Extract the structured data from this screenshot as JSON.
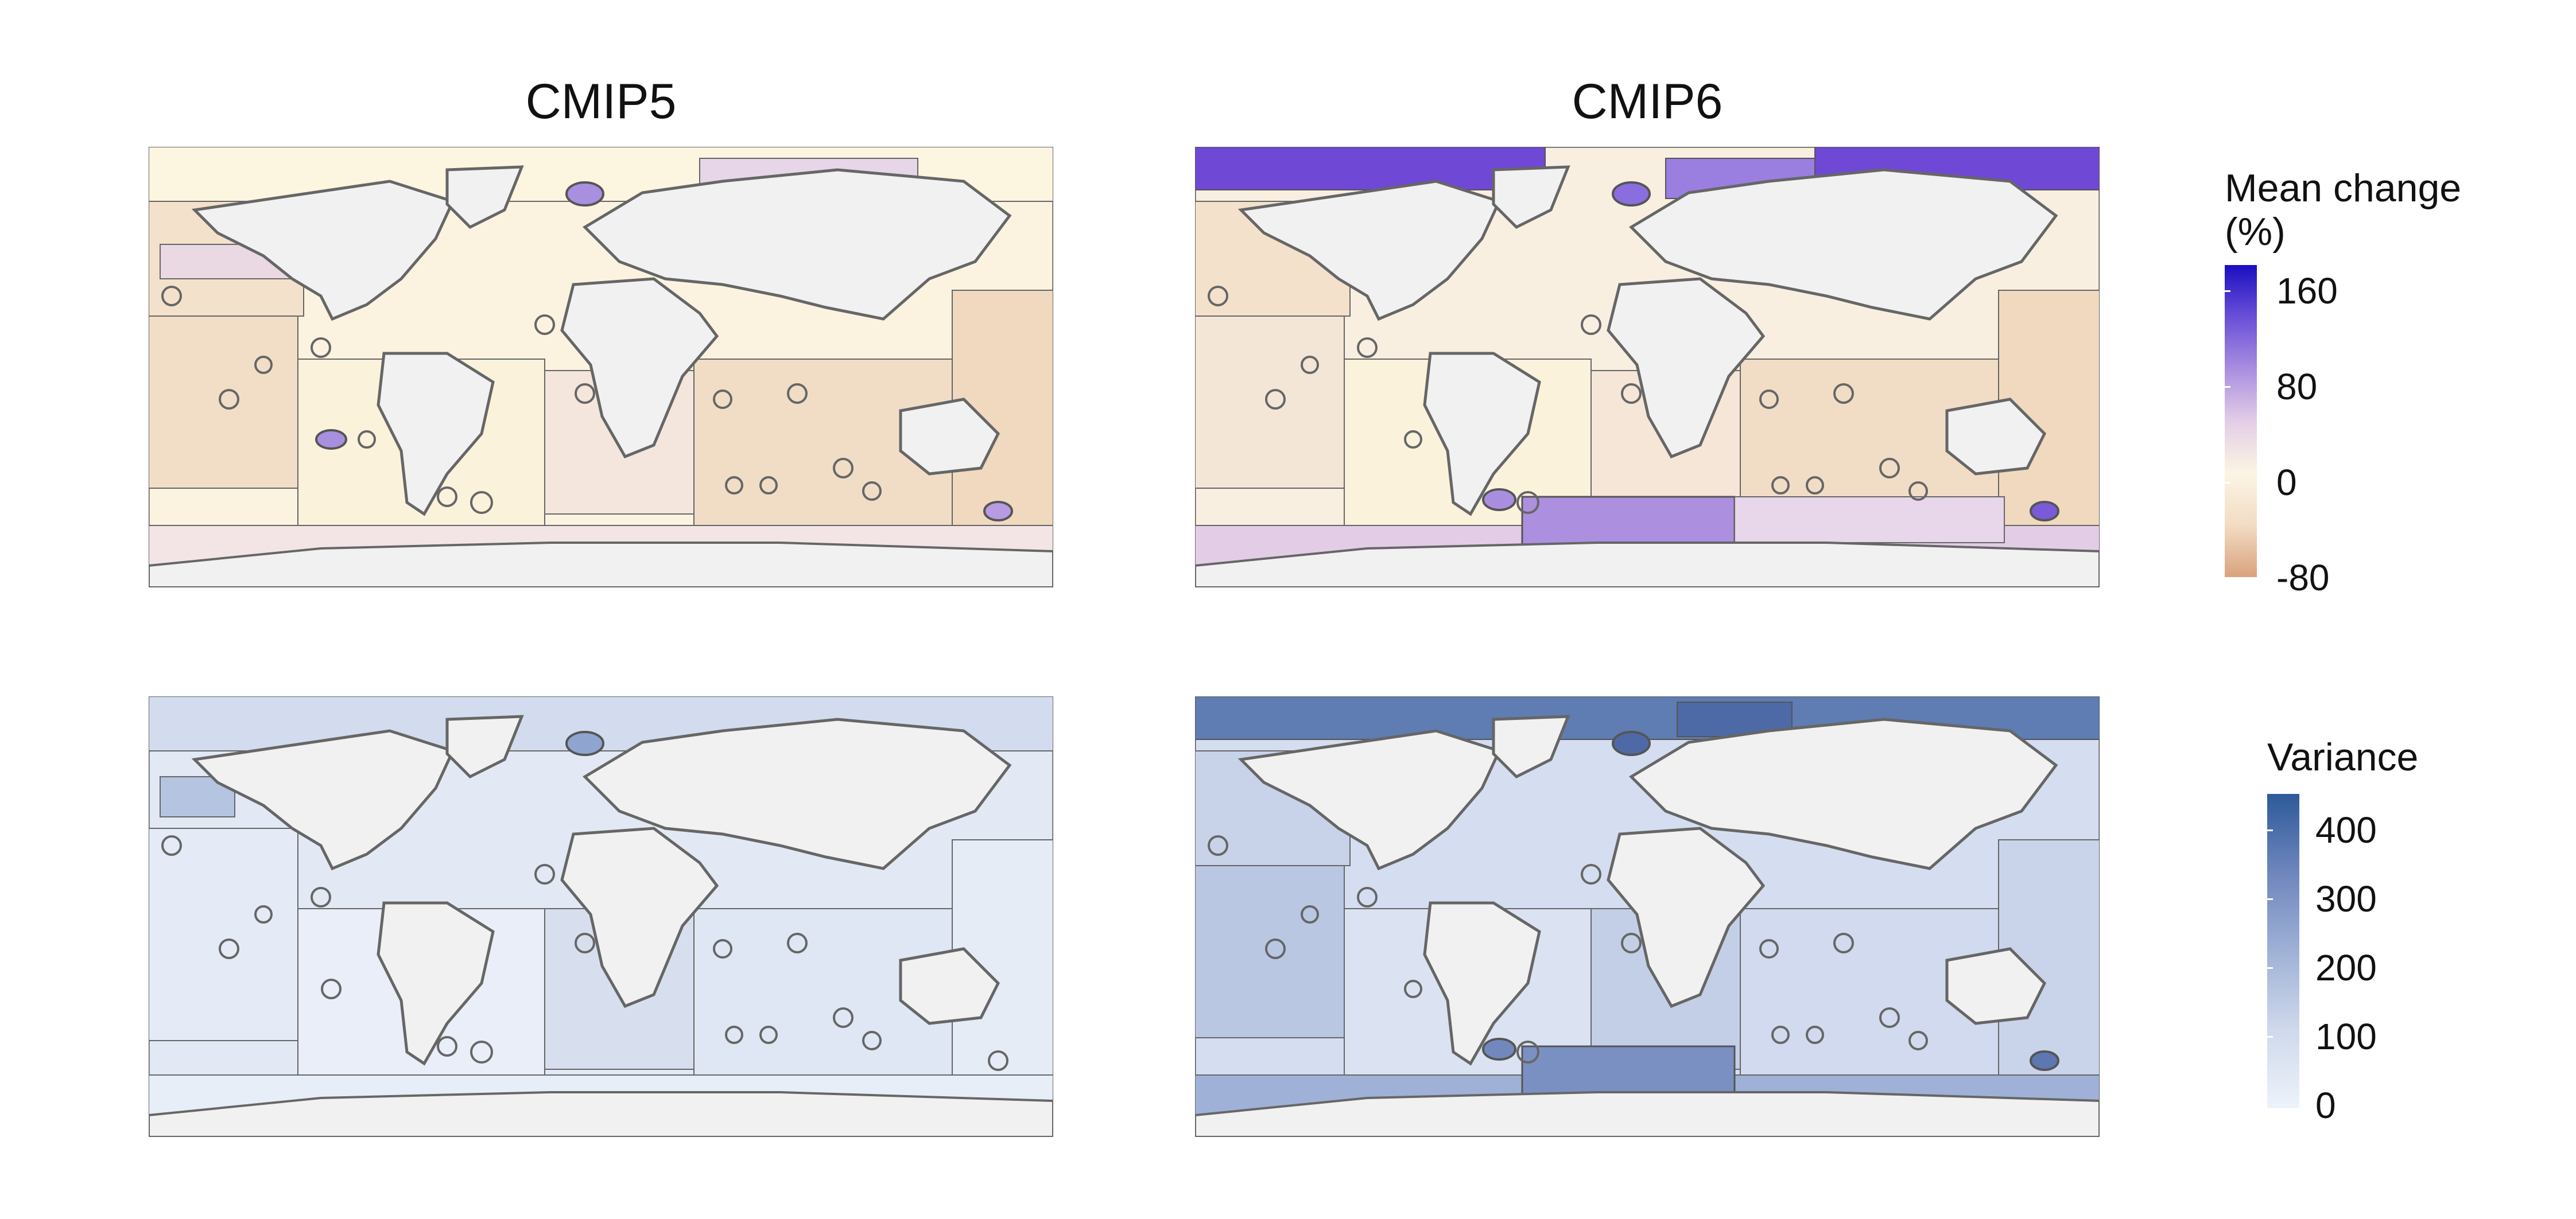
{
  "columns": [
    "CMIP5",
    "CMIP6"
  ],
  "legend_mean": {
    "title_line1": "Mean change",
    "title_line2": "(%)",
    "ticks": [
      "160",
      "80",
      "0",
      "-80"
    ],
    "range": [
      -90,
      180
    ],
    "colors": [
      "#d9a27c",
      "#f2dcc4",
      "#fbf5e4",
      "#e3cde6",
      "#a98ee0",
      "#6a4fd8",
      "#1a0fc0"
    ]
  },
  "legend_variance": {
    "title": "Variance",
    "ticks": [
      "400",
      "300",
      "200",
      "100",
      "0"
    ],
    "range": [
      0,
      450
    ],
    "colors": [
      "#eef3fa",
      "#cfd9ec",
      "#9fb1d6",
      "#6f86bd",
      "#2d5a9a"
    ]
  },
  "colors": {
    "land": "#f1f1f1",
    "border": "#555555",
    "mean_cmip5_base": "#f5e2c8",
    "mean_cmip6_high": "#7048d6",
    "var_cmip5_base": "#e2e9f5",
    "var_cmip6_high": "#5c78b0"
  }
}
